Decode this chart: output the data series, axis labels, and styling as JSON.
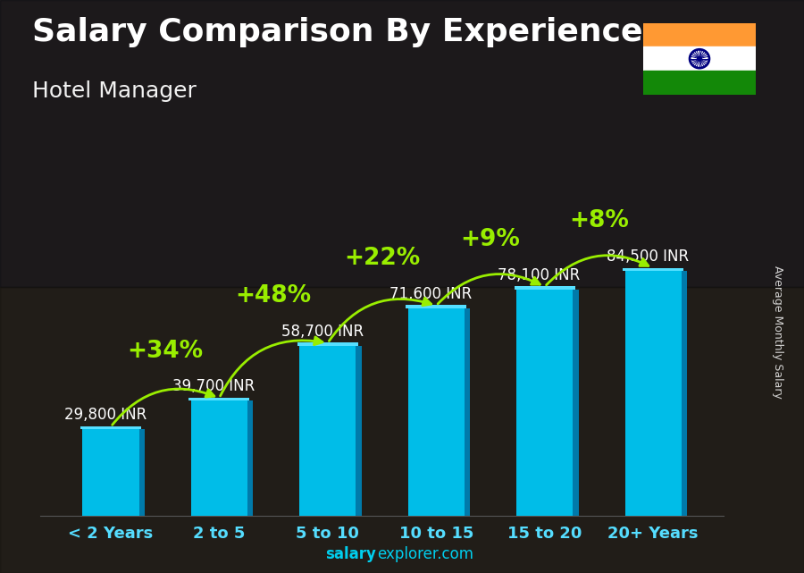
{
  "title": "Salary Comparison By Experience",
  "subtitle": "Hotel Manager",
  "categories": [
    "< 2 Years",
    "2 to 5",
    "5 to 10",
    "10 to 15",
    "15 to 20",
    "20+ Years"
  ],
  "values": [
    29800,
    39700,
    58700,
    71600,
    78100,
    84500
  ],
  "labels": [
    "29,800 INR",
    "39,700 INR",
    "58,700 INR",
    "71,600 INR",
    "78,100 INR",
    "84,500 INR"
  ],
  "pct_changes": [
    null,
    "+34%",
    "+48%",
    "+22%",
    "+9%",
    "+8%"
  ],
  "bar_face_color": "#00bde8",
  "bar_side_color": "#007aaa",
  "bar_top_color": "#55dfff",
  "title_fontsize": 26,
  "subtitle_fontsize": 18,
  "label_fontsize": 12,
  "pct_fontsize": 19,
  "xtick_fontsize": 13,
  "footer_salary_color": "#00cfee",
  "footer_rest_color": "#00cfee",
  "arrow_color": "#99ee00",
  "pct_color": "#99ee00",
  "label_color": "white",
  "xtick_color": "#55ddff",
  "ylabel_text": "Average Monthly Salary",
  "footer_bold": "salary",
  "footer_rest": "explorer.com"
}
